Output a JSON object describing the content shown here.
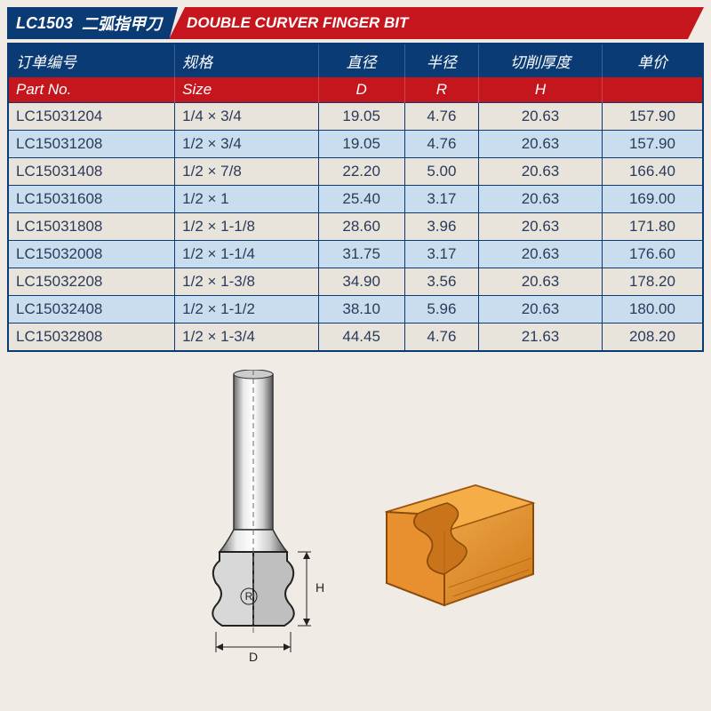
{
  "title": {
    "code": "LC1503",
    "name_cn": "二弧指甲刀",
    "name_en": "DOUBLE CURVER FINGER BIT"
  },
  "headers_cn": [
    "订单编号",
    "规格",
    "直径",
    "半径",
    "切削厚度",
    "单价"
  ],
  "headers_en": [
    "Part No.",
    "Size",
    "D",
    "R",
    "H",
    ""
  ],
  "columns_align": [
    "left",
    "left",
    "center",
    "center",
    "center",
    "center"
  ],
  "rows": [
    {
      "part": "LC15031204",
      "size": "1/4 × 3/4",
      "d": "19.05",
      "r": "4.76",
      "h": "20.63",
      "price": "157.90"
    },
    {
      "part": "LC15031208",
      "size": "1/2 × 3/4",
      "d": "19.05",
      "r": "4.76",
      "h": "20.63",
      "price": "157.90"
    },
    {
      "part": "LC15031408",
      "size": "1/2 × 7/8",
      "d": "22.20",
      "r": "5.00",
      "h": "20.63",
      "price": "166.40"
    },
    {
      "part": "LC15031608",
      "size": "1/2 × 1",
      "d": "25.40",
      "r": "3.17",
      "h": "20.63",
      "price": "169.00"
    },
    {
      "part": "LC15031808",
      "size": "1/2 × 1-1/8",
      "d": "28.60",
      "r": "3.96",
      "h": "20.63",
      "price": "171.80"
    },
    {
      "part": "LC15032008",
      "size": "1/2 × 1-1/4",
      "d": "31.75",
      "r": "3.17",
      "h": "20.63",
      "price": "176.60"
    },
    {
      "part": "LC15032208",
      "size": "1/2 × 1-3/8",
      "d": "34.90",
      "r": "3.56",
      "h": "20.63",
      "price": "178.20"
    },
    {
      "part": "LC15032408",
      "size": "1/2 × 1-1/2",
      "d": "38.10",
      "r": "5.96",
      "h": "20.63",
      "price": "180.00"
    },
    {
      "part": "LC15032808",
      "size": "1/2 × 1-3/4",
      "d": "44.45",
      "r": "4.76",
      "h": "21.63",
      "price": "208.20"
    }
  ],
  "diagram_labels": {
    "D": "D",
    "R": "R",
    "H": "H"
  },
  "colors": {
    "header_blue": "#0a3b74",
    "header_red": "#c6161d",
    "row_even": "#caddee",
    "row_odd": "#e8e4dc",
    "wood_light": "#f2a23c",
    "wood_dark": "#c9741a",
    "shank_light": "#e8e8e8",
    "shank_dark": "#888888"
  }
}
